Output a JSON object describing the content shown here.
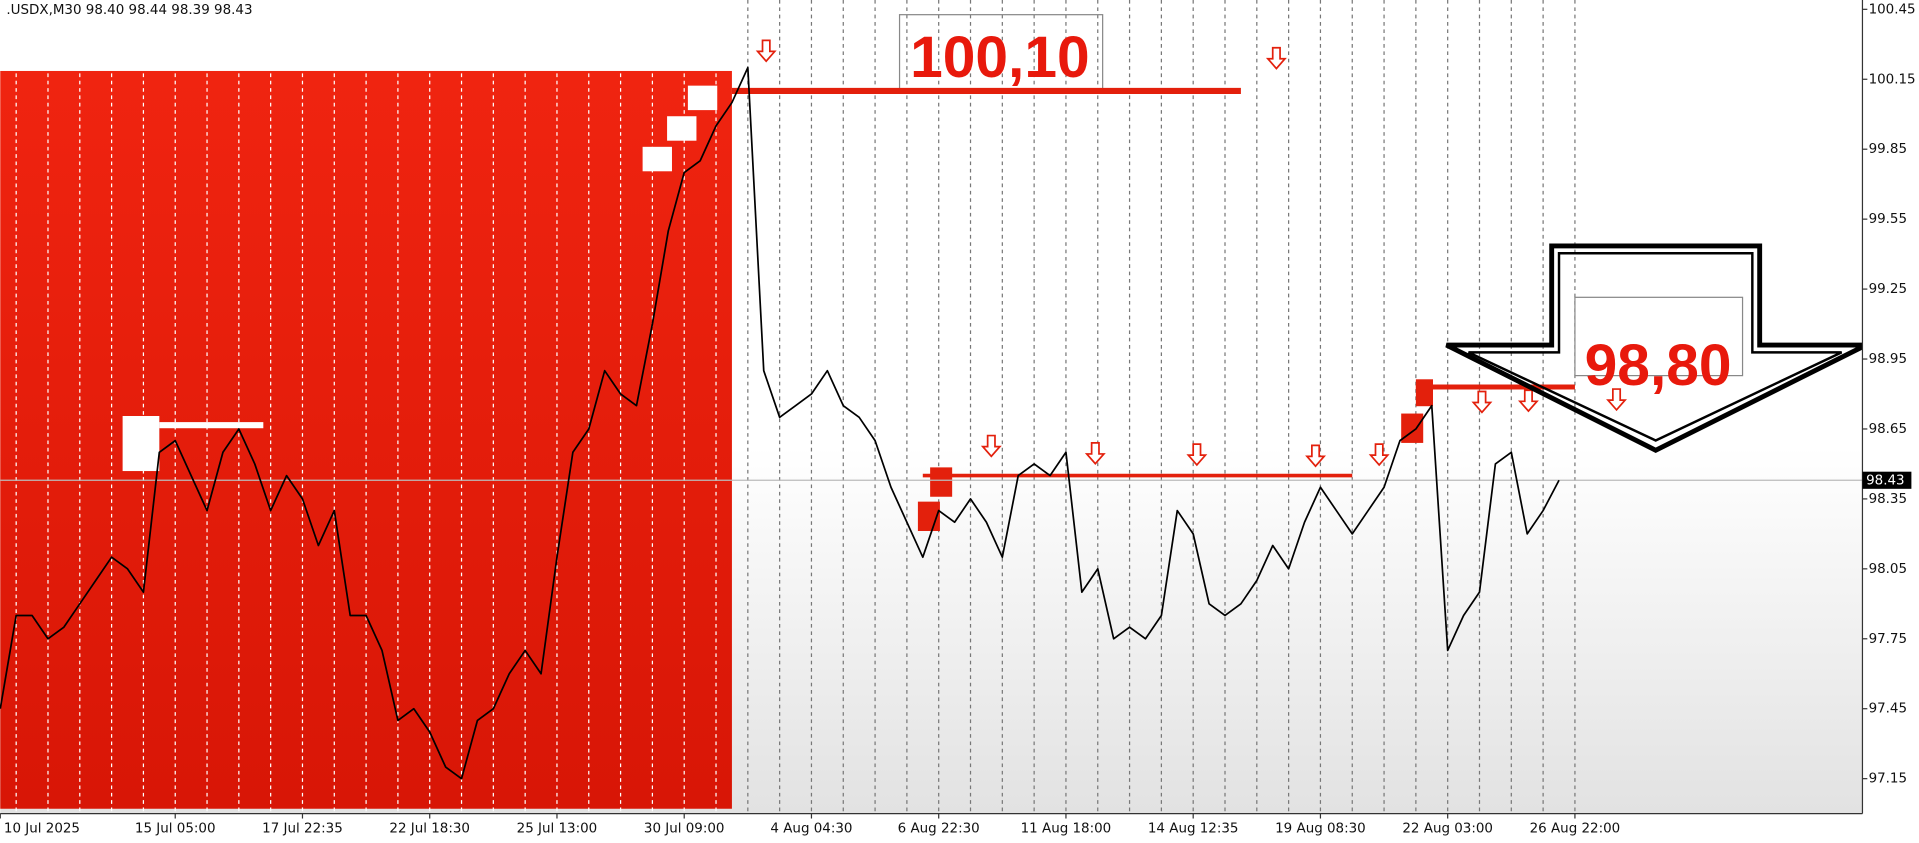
{
  "chart_data": {
    "type": "line",
    "title": ".USDX,M30  98.40 98.44 98.39 98.43",
    "last_price": 98.43,
    "categories": [
      "10 Jul 2025",
      null,
      null,
      null,
      null,
      null,
      null,
      null,
      null,
      null,
      null,
      "15 Jul 05:00",
      null,
      null,
      null,
      null,
      null,
      null,
      null,
      "17 Jul 22:35",
      null,
      null,
      null,
      null,
      null,
      null,
      null,
      "22 Jul 18:30",
      null,
      null,
      null,
      null,
      null,
      null,
      null,
      "25 Jul 13:00",
      null,
      null,
      null,
      null,
      null,
      null,
      null,
      "30 Jul 09:00",
      null,
      null,
      null,
      null,
      null,
      null,
      null,
      "4 Aug 04:30",
      null,
      null,
      null,
      null,
      null,
      null,
      null,
      "6 Aug 22:30",
      null,
      null,
      null,
      null,
      null,
      null,
      null,
      "11 Aug 18:00",
      null,
      null,
      null,
      null,
      null,
      null,
      null,
      "14 Aug 12:35",
      null,
      null,
      null,
      null,
      null,
      null,
      null,
      "19 Aug 08:30",
      null,
      null,
      null,
      null,
      null,
      null,
      null,
      "22 Aug 03:00",
      null,
      null,
      null,
      null,
      null,
      null,
      null,
      "26 Aug 22:00"
    ],
    "series": [
      {
        "name": "USDX",
        "color": "#000000",
        "values": [
          97.45,
          97.85,
          97.85,
          97.75,
          97.8,
          97.9,
          98.0,
          98.1,
          98.05,
          97.95,
          98.55,
          98.6,
          98.45,
          98.3,
          98.55,
          98.65,
          98.5,
          98.3,
          98.45,
          98.35,
          98.15,
          98.3,
          97.85,
          97.85,
          97.7,
          97.4,
          97.45,
          97.35,
          97.2,
          97.15,
          97.4,
          97.45,
          97.6,
          97.7,
          97.6,
          98.1,
          98.55,
          98.65,
          98.9,
          98.8,
          98.75,
          99.1,
          99.5,
          99.75,
          99.8,
          99.95,
          100.05,
          100.2,
          98.9,
          98.7,
          98.75,
          98.8,
          98.9,
          98.75,
          98.7,
          98.6,
          98.4,
          98.25,
          98.1,
          98.3,
          98.25,
          98.35,
          98.25,
          98.1,
          98.45,
          98.5,
          98.45,
          98.55,
          97.95,
          98.05,
          97.75,
          97.8,
          97.75,
          97.85,
          98.3,
          98.2,
          97.9,
          97.85,
          97.9,
          98.0,
          98.15,
          98.05,
          98.25,
          98.4,
          98.3,
          98.2,
          98.3,
          98.4,
          98.6,
          98.65,
          98.75,
          97.7,
          97.85,
          97.95,
          98.5,
          98.55,
          98.2,
          98.3,
          98.43,
          null
        ]
      }
    ],
    "ylim": [
      97.0,
      100.49
    ],
    "yticks": [
      97.15,
      97.45,
      97.75,
      98.05,
      98.35,
      98.65,
      98.95,
      99.25,
      99.55,
      99.85,
      100.15,
      100.45
    ],
    "grid": "vertical",
    "levels": [
      100.1,
      98.45,
      98.83
    ],
    "annotations": [
      {
        "label": "100,10",
        "value": 100.1
      },
      {
        "label": "98,80",
        "value": 98.8
      }
    ]
  }
}
